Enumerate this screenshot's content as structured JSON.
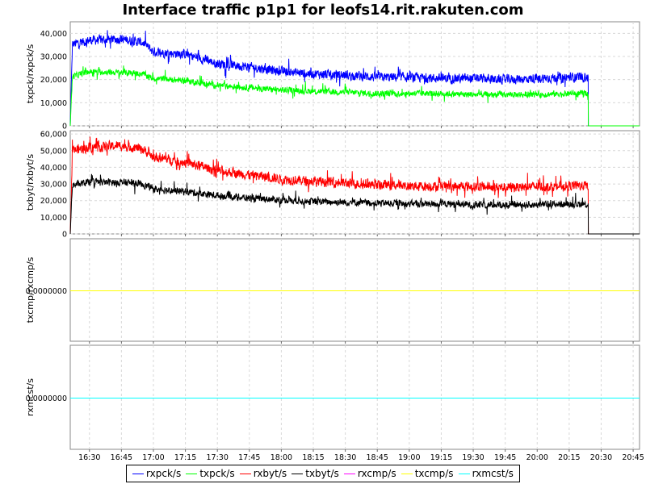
{
  "chart_data": {
    "type": "line",
    "title": "Interface traffic p1p1 for leofs14.rit.rakuten.com",
    "x_ticks": [
      "16:30",
      "16:45",
      "17:00",
      "17:15",
      "17:30",
      "17:45",
      "18:00",
      "18:15",
      "18:30",
      "18:45",
      "19:00",
      "19:15",
      "19:30",
      "19:45",
      "20:00",
      "20:15",
      "20:30",
      "20:45"
    ],
    "x_range": [
      "16:21",
      "20:48"
    ],
    "data_end_time": "20:24",
    "grid": true,
    "legend_position": "bottom",
    "panels": [
      {
        "ylabel": "txpck/rxpck/s",
        "ylim": [
          0,
          45000
        ],
        "y_ticks": [
          "0",
          "10,000",
          "20,000",
          "30,000",
          "40,000"
        ],
        "y_tick_values": [
          0,
          10000,
          20000,
          30000,
          40000
        ],
        "series": [
          {
            "name": "rxpck/s",
            "color": "#0000ff",
            "times": [
              "16:21",
              "16:30",
              "16:45",
              "16:55",
              "17:00",
              "17:15",
              "17:30",
              "17:45",
              "18:00",
              "18:15",
              "18:30",
              "18:45",
              "19:00",
              "19:15",
              "19:30",
              "19:45",
              "20:00",
              "20:15",
              "20:24"
            ],
            "values": [
              35000,
              37000,
              37500,
              36000,
              32000,
              31000,
              27000,
              25500,
              23500,
              22500,
              22000,
              21000,
              21000,
              20500,
              20500,
              20000,
              20500,
              21000,
              21000
            ],
            "noise": 1800
          },
          {
            "name": "txpck/s",
            "color": "#00ff00",
            "times": [
              "16:21",
              "16:30",
              "16:45",
              "16:55",
              "17:00",
              "17:15",
              "17:30",
              "17:45",
              "18:00",
              "18:15",
              "18:30",
              "18:45",
              "19:00",
              "19:15",
              "19:30",
              "19:45",
              "20:00",
              "20:15",
              "20:24"
            ],
            "values": [
              21000,
              23500,
              23000,
              22500,
              20500,
              19500,
              17500,
              16500,
              15500,
              15000,
              14500,
              14000,
              14000,
              14000,
              13500,
              13500,
              13500,
              14000,
              14000
            ],
            "noise": 1200
          }
        ]
      },
      {
        "ylabel": "txbyt/rxbyt/s",
        "ylim": [
          0,
          62000
        ],
        "y_ticks": [
          "0",
          "10,000",
          "20,000",
          "30,000",
          "40,000",
          "50,000",
          "60,000"
        ],
        "y_tick_values": [
          0,
          10000,
          20000,
          30000,
          40000,
          50000,
          60000
        ],
        "series": [
          {
            "name": "rxbyt/s",
            "color": "#ff0000",
            "times": [
              "16:21",
              "16:30",
              "16:45",
              "16:55",
              "17:00",
              "17:15",
              "17:30",
              "17:45",
              "18:00",
              "18:15",
              "18:30",
              "18:45",
              "19:00",
              "19:15",
              "19:30",
              "19:45",
              "20:00",
              "20:15",
              "20:24"
            ],
            "values": [
              50000,
              52000,
              53000,
              51000,
              46000,
              43000,
              38000,
              35500,
              33000,
              31500,
              30500,
              29500,
              29000,
              28500,
              28500,
              28000,
              28500,
              29000,
              29000
            ],
            "noise": 2600
          },
          {
            "name": "txbyt/s",
            "color": "#000000",
            "times": [
              "16:21",
              "16:30",
              "16:45",
              "16:55",
              "17:00",
              "17:15",
              "17:30",
              "17:45",
              "18:00",
              "18:15",
              "18:30",
              "18:45",
              "19:00",
              "19:15",
              "19:30",
              "19:45",
              "20:00",
              "20:15",
              "20:24"
            ],
            "values": [
              29000,
              31000,
              31000,
              30000,
              27000,
              25500,
              23000,
              21500,
              20500,
              19500,
              19000,
              18500,
              18000,
              18000,
              17500,
              17500,
              17500,
              18000,
              18000
            ],
            "noise": 1900
          }
        ]
      },
      {
        "ylabel": "txcmp/rxcmp/s",
        "y_ticks": [
          "0.0000000"
        ],
        "series": [
          {
            "name": "rxcmp/s",
            "color": "#ff00ff",
            "constant": 0
          },
          {
            "name": "txcmp/s",
            "color": "#ffff00",
            "constant": 0
          }
        ]
      },
      {
        "ylabel": "rxmcst/s",
        "y_ticks": [
          "0.0000000"
        ],
        "series": [
          {
            "name": "rxmcst/s",
            "color": "#00ffff",
            "constant": 0
          }
        ]
      }
    ]
  },
  "legend": [
    {
      "label": "rxpck/s",
      "color": "#0000ff"
    },
    {
      "label": "txpck/s",
      "color": "#00ff00"
    },
    {
      "label": "rxbyt/s",
      "color": "#ff0000"
    },
    {
      "label": "txbyt/s",
      "color": "#000000"
    },
    {
      "label": "rxcmp/s",
      "color": "#ff00ff"
    },
    {
      "label": "txcmp/s",
      "color": "#ffff00"
    },
    {
      "label": "rxmcst/s",
      "color": "#00ffff"
    }
  ]
}
